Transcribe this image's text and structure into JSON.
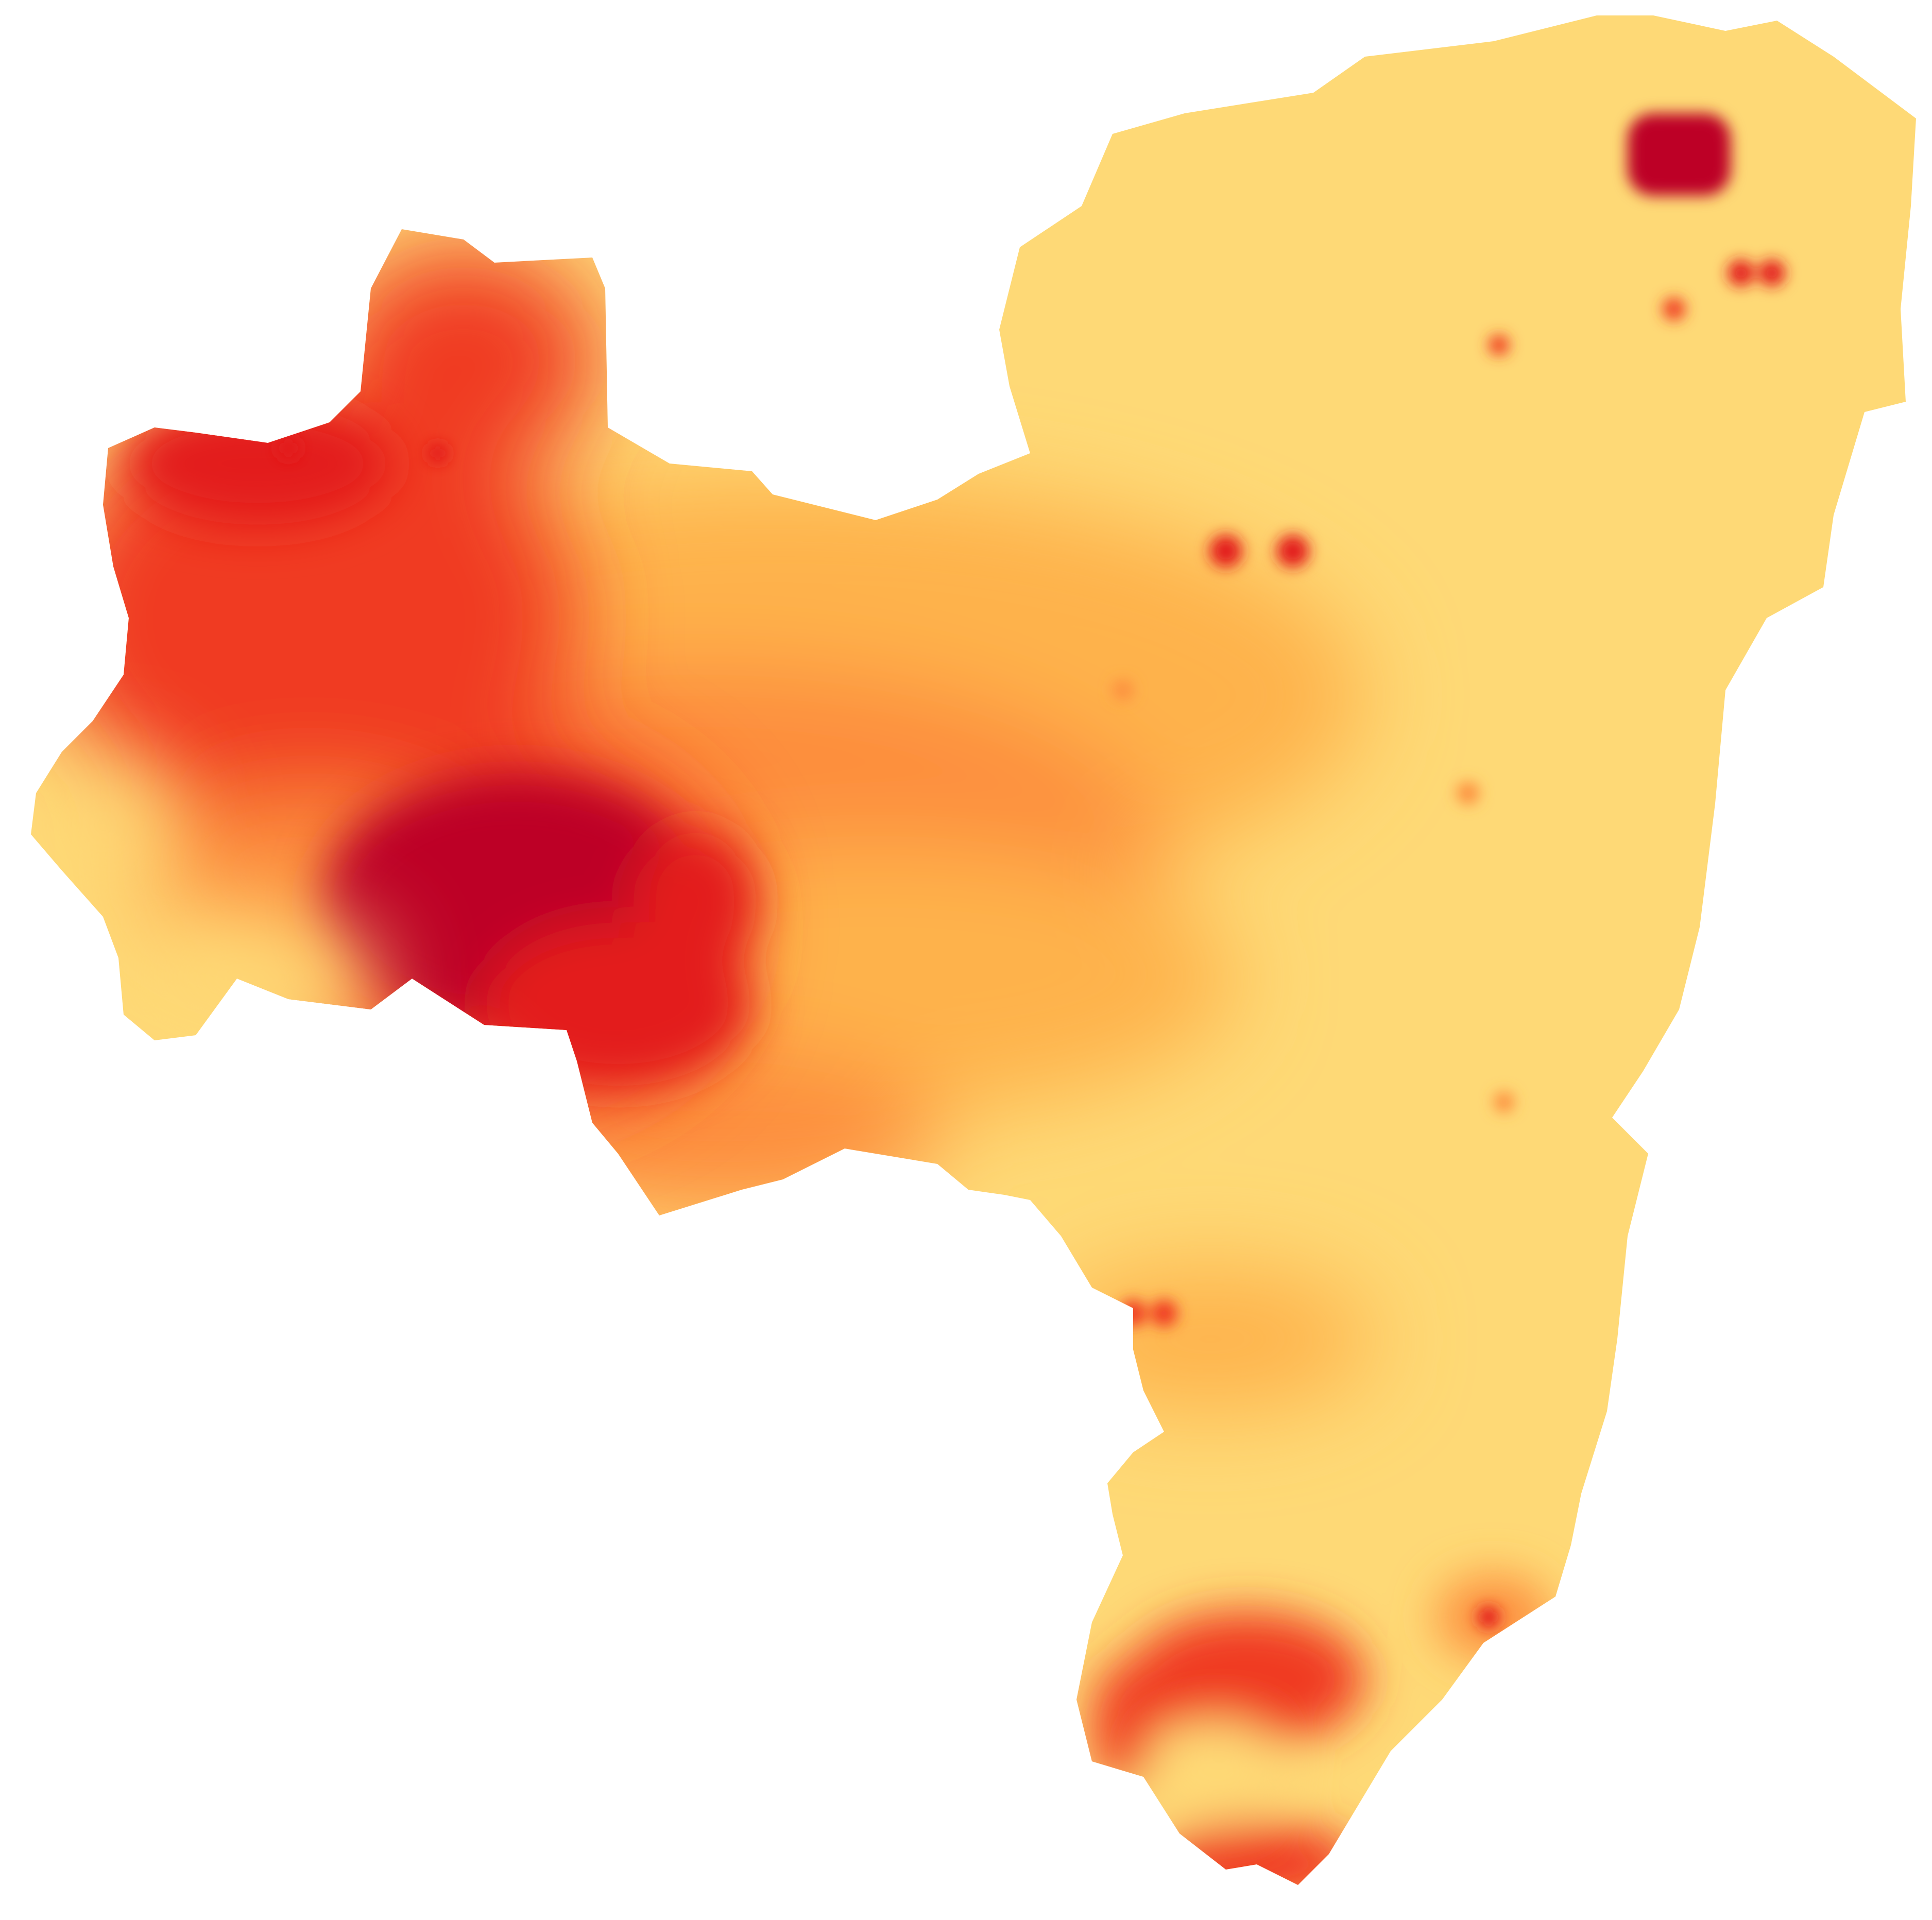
{
  "map": {
    "type": "heatmap-choropleth",
    "background": "#ffffff",
    "palette": {
      "low": "#fed976",
      "low_mid": "#feb24c",
      "mid": "#fd8d3c",
      "high_mid": "#f03b20",
      "high": "#e31a1c",
      "peak": "#bd0026"
    },
    "legend": null,
    "labels": []
  }
}
